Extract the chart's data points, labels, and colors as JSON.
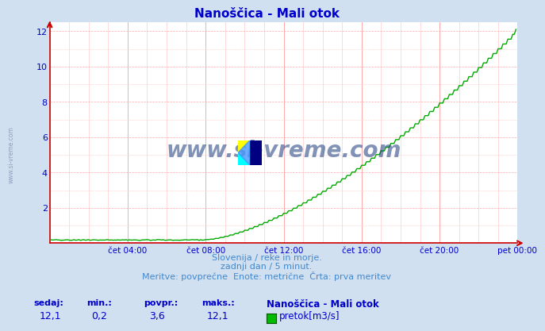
{
  "title": "Nanoščica - Mali otok",
  "bg_color": "#d0e0f0",
  "plot_bg_color": "#ffffff",
  "line_color": "#00aa00",
  "axis_color": "#cc0000",
  "text_color": "#0000cc",
  "watermark_text": "www.si-vreme.com",
  "left_watermark": "www.si-vreme.com",
  "ylabel_min": 0,
  "ylabel_max": 12.5,
  "ytick_vals": [
    2,
    4,
    6,
    8,
    10,
    12
  ],
  "xlabel_ticks": [
    "čet 04:00",
    "čet 08:00",
    "čet 12:00",
    "čet 16:00",
    "čet 20:00",
    "pet 00:00"
  ],
  "subtitle_line1": "Slovenija / reke in morje.",
  "subtitle_line2": "zadnji dan / 5 minut.",
  "subtitle_line3": "Meritve: povprečne  Enote: metrične  Črta: prva meritev",
  "footer_labels": [
    "sedaj:",
    "min.:",
    "povpr.:",
    "maks.:"
  ],
  "footer_values": [
    "12,1",
    "0,2",
    "3,6",
    "12,1"
  ],
  "legend_station": "Nanoščica - Mali otok",
  "legend_label": "pretok[m3/s]",
  "legend_color": "#00bb00",
  "n_points": 288
}
